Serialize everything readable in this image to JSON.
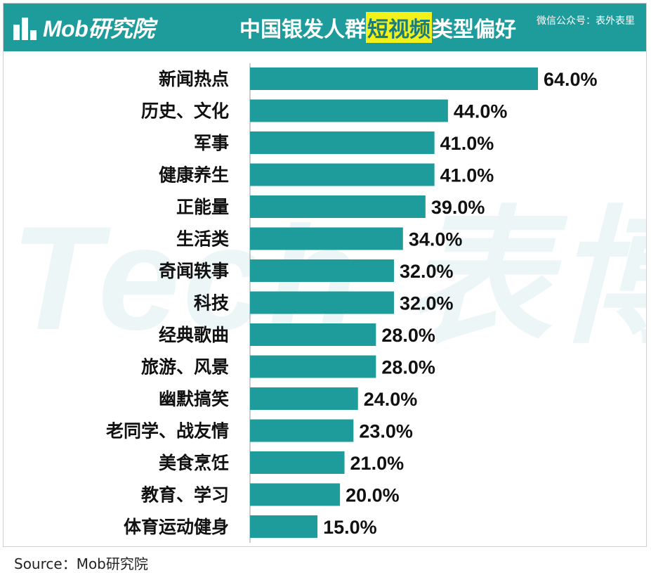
{
  "header": {
    "logo_text": "Mob研究院",
    "title_before": "中国银发人群",
    "title_highlight": "短视频",
    "title_after": "类型偏好",
    "wechat_label": "微信公众号：表外表里"
  },
  "watermark_text": "Tech 表博",
  "source_text": "Source：Mob研究院",
  "colors": {
    "bar": "#1e9c9c",
    "header_bg": "#1e9c9c",
    "title_highlight_bg": "#f2f21a",
    "axis": "#999999",
    "text": "#111111"
  },
  "chart_data": {
    "type": "bar",
    "orientation": "horizontal",
    "title": "中国银发人群短视频类型偏好",
    "categories": [
      "新闻热点",
      "历史、文化",
      "军事",
      "健康养生",
      "正能量",
      "生活类",
      "奇闻轶事",
      "科技",
      "经典歌曲",
      "旅游、风景",
      "幽默搞笑",
      "老同学、战友情",
      "美食烹饪",
      "教育、学习",
      "体育运动健身"
    ],
    "values": [
      64.0,
      44.0,
      41.0,
      41.0,
      39.0,
      34.0,
      32.0,
      32.0,
      28.0,
      28.0,
      24.0,
      23.0,
      21.0,
      20.0,
      15.0
    ],
    "value_labels": [
      "64.0%",
      "44.0%",
      "41.0%",
      "41.0%",
      "39.0%",
      "34.0%",
      "32.0%",
      "32.0%",
      "28.0%",
      "28.0%",
      "24.0%",
      "23.0%",
      "21.0%",
      "20.0%",
      "15.0%"
    ],
    "unit": "%",
    "xlim": [
      0,
      64
    ],
    "grid": false,
    "legend": false
  }
}
